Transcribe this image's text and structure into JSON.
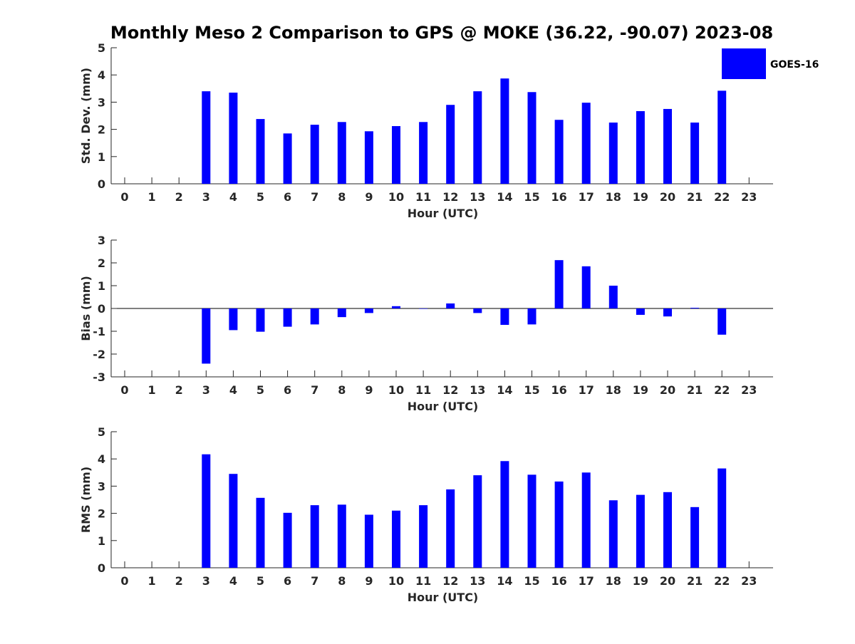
{
  "title": "Monthly Meso 2 Comparison to GPS @ MOKE (36.22, -90.07) 2023-08",
  "colors": {
    "bar": "#0000ff",
    "axis": "#262626"
  },
  "legend": {
    "label": "GOES-16",
    "position": "top-right"
  },
  "chart_data": [
    {
      "type": "bar",
      "ylabel": "Std. Dev. (mm)",
      "xlabel": "Hour (UTC)",
      "ylim": [
        0,
        5
      ],
      "yticks": [
        0,
        1,
        2,
        3,
        4,
        5
      ],
      "xticks": [
        0,
        1,
        2,
        3,
        4,
        5,
        6,
        7,
        8,
        9,
        10,
        11,
        12,
        13,
        14,
        15,
        16,
        17,
        18,
        19,
        20,
        21,
        22,
        23
      ],
      "grid": false,
      "series": [
        {
          "name": "GOES-16",
          "values": [
            null,
            null,
            null,
            3.4,
            3.35,
            2.38,
            1.85,
            2.17,
            2.27,
            1.93,
            2.12,
            2.27,
            2.9,
            3.4,
            3.87,
            3.37,
            2.35,
            2.98,
            2.25,
            2.67,
            2.75,
            2.25,
            3.42,
            null
          ]
        }
      ]
    },
    {
      "type": "bar",
      "ylabel": "Bias (mm)",
      "xlabel": "Hour (UTC)",
      "ylim": [
        -3,
        3
      ],
      "yticks": [
        -3,
        -2,
        -1,
        0,
        1,
        2,
        3
      ],
      "xticks": [
        0,
        1,
        2,
        3,
        4,
        5,
        6,
        7,
        8,
        9,
        10,
        11,
        12,
        13,
        14,
        15,
        16,
        17,
        18,
        19,
        20,
        21,
        22,
        23
      ],
      "grid": false,
      "series": [
        {
          "name": "GOES-16",
          "values": [
            null,
            null,
            null,
            -2.42,
            -0.95,
            -1.02,
            -0.8,
            -0.7,
            -0.38,
            -0.2,
            0.1,
            0.0,
            0.22,
            -0.2,
            -0.72,
            -0.7,
            2.12,
            1.85,
            1.0,
            -0.28,
            -0.35,
            0.03,
            -1.15,
            null
          ]
        }
      ]
    },
    {
      "type": "bar",
      "ylabel": "RMS (mm)",
      "xlabel": "Hour (UTC)",
      "ylim": [
        0,
        5
      ],
      "yticks": [
        0,
        1,
        2,
        3,
        4,
        5
      ],
      "xticks": [
        0,
        1,
        2,
        3,
        4,
        5,
        6,
        7,
        8,
        9,
        10,
        11,
        12,
        13,
        14,
        15,
        16,
        17,
        18,
        19,
        20,
        21,
        22,
        23
      ],
      "grid": false,
      "series": [
        {
          "name": "GOES-16",
          "values": [
            null,
            null,
            null,
            4.17,
            3.45,
            2.57,
            2.02,
            2.3,
            2.32,
            1.95,
            2.1,
            2.3,
            2.88,
            3.4,
            3.92,
            3.42,
            3.17,
            3.5,
            2.48,
            2.68,
            2.78,
            2.23,
            3.65,
            null
          ]
        }
      ]
    }
  ]
}
